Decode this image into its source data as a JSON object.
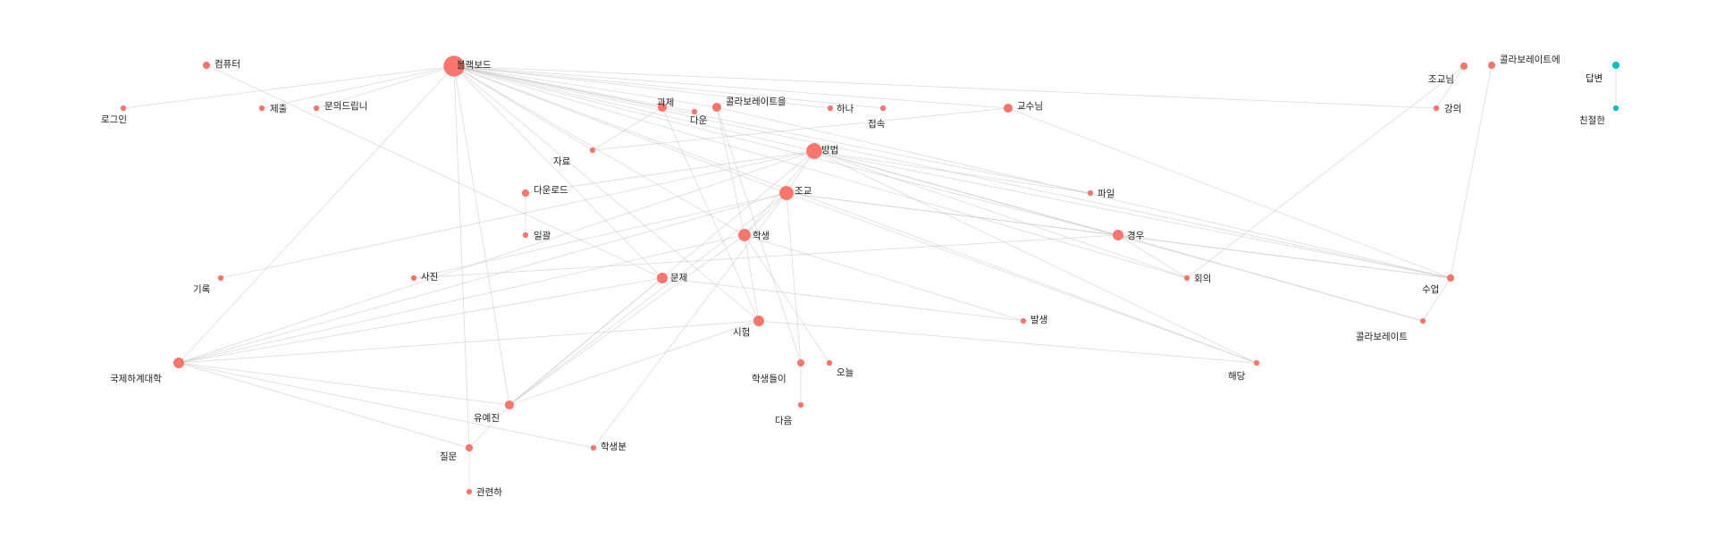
{
  "graph": {
    "node_color_default": "#f8766d",
    "node_color_cluster2": "#00bfc4",
    "edge_color": "#c8c8c8",
    "nodes": [
      {
        "id": "blackboard",
        "label": "블랙보드",
        "weight": 10,
        "group": 1
      },
      {
        "id": "computer",
        "label": "컴퓨터",
        "weight": 2,
        "group": 1
      },
      {
        "id": "login",
        "label": "로그인",
        "weight": 1,
        "group": 1
      },
      {
        "id": "submit",
        "label": "제출",
        "weight": 1,
        "group": 1
      },
      {
        "id": "inquiry",
        "label": "문의드립니",
        "weight": 1,
        "group": 1
      },
      {
        "id": "assignment",
        "label": "과제",
        "weight": 3,
        "group": 1
      },
      {
        "id": "down",
        "label": "다운",
        "weight": 1,
        "group": 1
      },
      {
        "id": "collaborate_obj",
        "label": "콜라보레이트을",
        "weight": 3,
        "group": 1
      },
      {
        "id": "one",
        "label": "하나",
        "weight": 1,
        "group": 1
      },
      {
        "id": "access",
        "label": "접속",
        "weight": 1,
        "group": 1
      },
      {
        "id": "professor",
        "label": "교수님",
        "weight": 3,
        "group": 1
      },
      {
        "id": "material",
        "label": "자료",
        "weight": 1,
        "group": 1
      },
      {
        "id": "method",
        "label": "방법",
        "weight": 7,
        "group": 1
      },
      {
        "id": "download",
        "label": "다운로드",
        "weight": 2,
        "group": 1
      },
      {
        "id": "file",
        "label": "파일",
        "weight": 1,
        "group": 1
      },
      {
        "id": "ta",
        "label": "조교",
        "weight": 6,
        "group": 1
      },
      {
        "id": "batch",
        "label": "일괄",
        "weight": 1,
        "group": 1
      },
      {
        "id": "student",
        "label": "학생",
        "weight": 5,
        "group": 1
      },
      {
        "id": "case",
        "label": "경우",
        "weight": 4,
        "group": 1
      },
      {
        "id": "record",
        "label": "기록",
        "weight": 1,
        "group": 1
      },
      {
        "id": "photo",
        "label": "사진",
        "weight": 1,
        "group": 1
      },
      {
        "id": "problem",
        "label": "문제",
        "weight": 4,
        "group": 1
      },
      {
        "id": "meeting",
        "label": "회의",
        "weight": 1,
        "group": 1
      },
      {
        "id": "class",
        "label": "수업",
        "weight": 2,
        "group": 1
      },
      {
        "id": "occur",
        "label": "발생",
        "weight": 1,
        "group": 1
      },
      {
        "id": "exam",
        "label": "시험",
        "weight": 4,
        "group": 1
      },
      {
        "id": "collaborate",
        "label": "콜라보레이트",
        "weight": 1,
        "group": 1
      },
      {
        "id": "university",
        "label": "국제하계대학",
        "weight": 4,
        "group": 1
      },
      {
        "id": "students",
        "label": "학생들이",
        "weight": 2,
        "group": 1
      },
      {
        "id": "come",
        "label": "오늘",
        "weight": 1,
        "group": 1
      },
      {
        "id": "relevant",
        "label": "해당",
        "weight": 1,
        "group": 1
      },
      {
        "id": "yoo",
        "label": "유예진",
        "weight": 3,
        "group": 1
      },
      {
        "id": "next",
        "label": "다음",
        "weight": 1,
        "group": 1
      },
      {
        "id": "question",
        "label": "질문",
        "weight": 2,
        "group": 1
      },
      {
        "id": "student_hon",
        "label": "학생분",
        "weight": 1,
        "group": 1
      },
      {
        "id": "related",
        "label": "관련하",
        "weight": 1,
        "group": 1
      },
      {
        "id": "ta_hon",
        "label": "조교님",
        "weight": 2,
        "group": 1
      },
      {
        "id": "collaborate_loc",
        "label": "콜라보레이트에",
        "weight": 2,
        "group": 1
      },
      {
        "id": "lecture",
        "label": "강의",
        "weight": 1,
        "group": 1
      },
      {
        "id": "answer",
        "label": "답변",
        "weight": 2,
        "group": 2
      },
      {
        "id": "kind",
        "label": "친절한",
        "weight": 1,
        "group": 2
      }
    ],
    "edges": [
      [
        "blackboard",
        "login"
      ],
      [
        "blackboard",
        "submit"
      ],
      [
        "blackboard",
        "inquiry"
      ],
      [
        "blackboard",
        "assignment"
      ],
      [
        "blackboard",
        "down"
      ],
      [
        "blackboard",
        "collaborate_obj"
      ],
      [
        "blackboard",
        "one"
      ],
      [
        "blackboard",
        "access"
      ],
      [
        "blackboard",
        "professor"
      ],
      [
        "blackboard",
        "method"
      ],
      [
        "blackboard",
        "ta"
      ],
      [
        "blackboard",
        "student"
      ],
      [
        "blackboard",
        "case"
      ],
      [
        "blackboard",
        "problem"
      ],
      [
        "blackboard",
        "exam"
      ],
      [
        "blackboard",
        "university"
      ],
      [
        "blackboard",
        "yoo"
      ],
      [
        "blackboard",
        "question"
      ],
      [
        "blackboard",
        "lecture"
      ],
      [
        "blackboard",
        "file"
      ],
      [
        "blackboard",
        "meeting"
      ],
      [
        "blackboard",
        "class"
      ],
      [
        "blackboard",
        "relevant"
      ],
      [
        "blackboard",
        "material"
      ],
      [
        "computer",
        "problem"
      ],
      [
        "assignment",
        "material"
      ],
      [
        "assignment",
        "exam"
      ],
      [
        "collaborate_obj",
        "student"
      ],
      [
        "collaborate_obj",
        "class"
      ],
      [
        "collaborate_obj",
        "students"
      ],
      [
        "professor",
        "material"
      ],
      [
        "professor",
        "class"
      ],
      [
        "method",
        "record"
      ],
      [
        "method",
        "download"
      ],
      [
        "method",
        "file"
      ],
      [
        "method",
        "university"
      ],
      [
        "method",
        "student"
      ],
      [
        "method",
        "case"
      ],
      [
        "method",
        "yoo"
      ],
      [
        "method",
        "relevant"
      ],
      [
        "method",
        "class"
      ],
      [
        "method",
        "meeting"
      ],
      [
        "method",
        "collaborate"
      ],
      [
        "method",
        "ta"
      ],
      [
        "download",
        "batch"
      ],
      [
        "ta",
        "photo"
      ],
      [
        "ta",
        "case"
      ],
      [
        "ta",
        "student"
      ],
      [
        "ta",
        "university"
      ],
      [
        "ta",
        "yoo"
      ],
      [
        "ta",
        "class"
      ],
      [
        "ta",
        "relevant"
      ],
      [
        "ta",
        "students"
      ],
      [
        "ta",
        "student_hon"
      ],
      [
        "student",
        "university"
      ],
      [
        "student",
        "yoo"
      ],
      [
        "student",
        "exam"
      ],
      [
        "student",
        "occur"
      ],
      [
        "student",
        "come"
      ],
      [
        "case",
        "photo"
      ],
      [
        "case",
        "class"
      ],
      [
        "case",
        "meeting"
      ],
      [
        "case",
        "collaborate"
      ],
      [
        "problem",
        "university"
      ],
      [
        "problem",
        "yoo"
      ],
      [
        "problem",
        "occur"
      ],
      [
        "exam",
        "university"
      ],
      [
        "exam",
        "yoo"
      ],
      [
        "exam",
        "relevant"
      ],
      [
        "university",
        "question"
      ],
      [
        "university",
        "student_hon"
      ],
      [
        "university",
        "yoo"
      ],
      [
        "yoo",
        "question"
      ],
      [
        "question",
        "related"
      ],
      [
        "students",
        "next"
      ],
      [
        "ta_hon",
        "lecture"
      ],
      [
        "ta_hon",
        "meeting"
      ],
      [
        "collaborate_loc",
        "class"
      ],
      [
        "class",
        "collaborate"
      ],
      [
        "answer",
        "kind"
      ]
    ]
  }
}
